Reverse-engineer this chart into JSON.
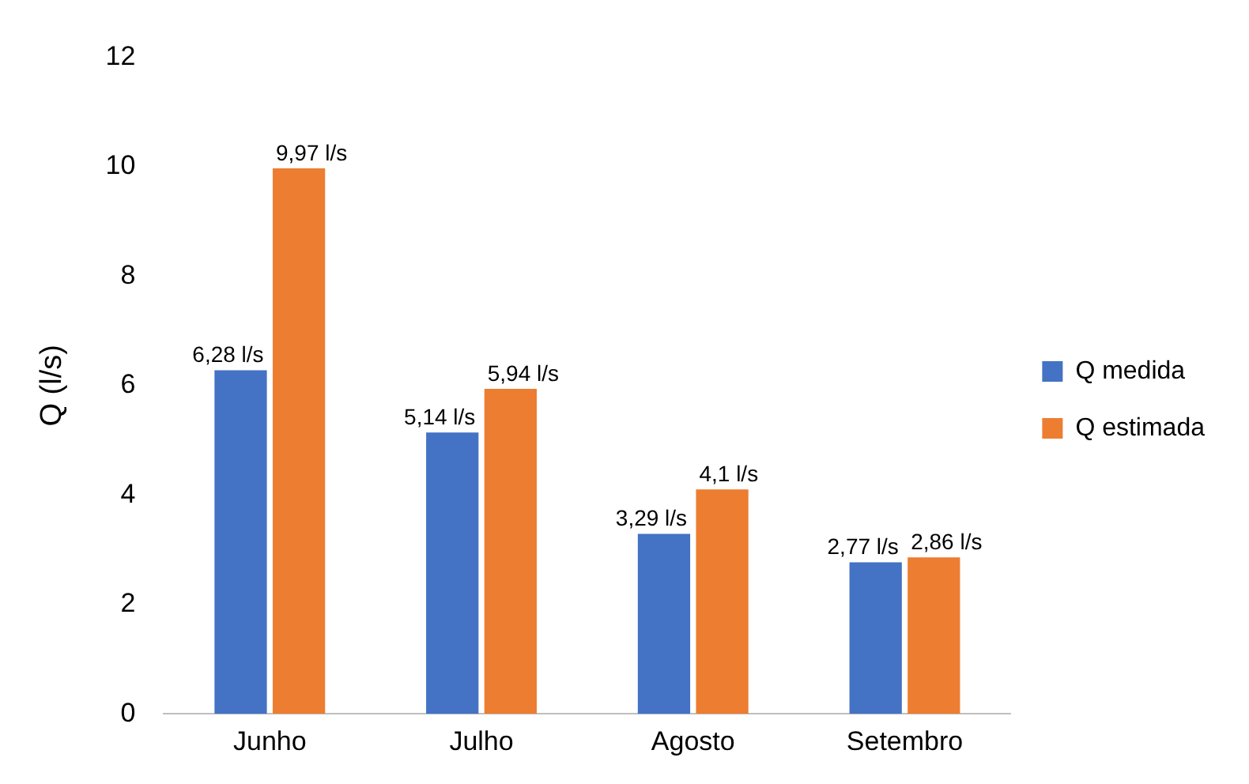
{
  "chart_data": {
    "type": "bar",
    "ylabel": "Q (l/s)",
    "categories": [
      "Junho",
      "Julho",
      "Agosto",
      "Setembro"
    ],
    "series": [
      {
        "name": "Q medida",
        "color": "#4472c4",
        "values": [
          6.28,
          5.14,
          3.29,
          2.77
        ],
        "value_labels": [
          "6,28 l/s",
          "5,14 l/s",
          "3,29 l/s",
          "2,77 l/s"
        ]
      },
      {
        "name": "Q estimada",
        "color": "#ed7d31",
        "values": [
          9.97,
          5.94,
          4.1,
          2.86
        ],
        "value_labels": [
          "9,97 l/s",
          "5,94 l/s",
          "4,1 l/s",
          "2,86 l/s"
        ]
      }
    ],
    "ylim": [
      0,
      12
    ],
    "yticks": [
      0,
      2,
      4,
      6,
      8,
      10,
      12
    ],
    "grid": false,
    "legend": "right"
  }
}
